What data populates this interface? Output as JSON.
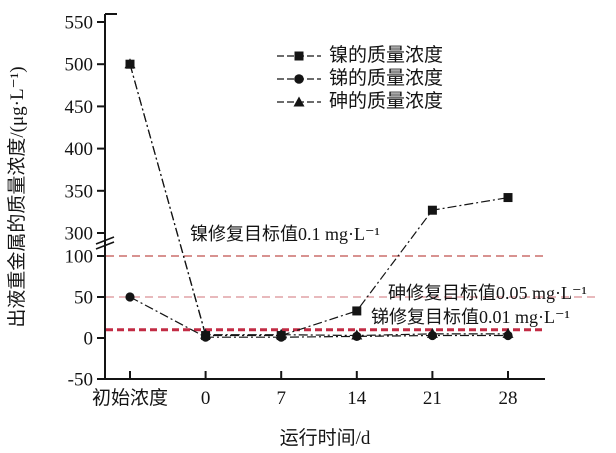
{
  "chart_data": {
    "type": "line",
    "title": "",
    "x_axis_label": "运行时间/d",
    "y_axis_label": "出液重金属的质量浓度/(μg·L⁻¹)",
    "categories": [
      "初始浓度",
      "0",
      "7",
      "14",
      "21",
      "28"
    ],
    "y_ticks": [
      -50,
      0,
      50,
      100,
      300,
      350,
      400,
      450,
      500,
      550
    ],
    "y_axis_break": {
      "after_value": 100,
      "before_value": 300
    },
    "grid": false,
    "legend_position": "top-center",
    "series": [
      {
        "name": "镍的质量浓度",
        "marker": "square",
        "color": "#141414",
        "values": [
          500,
          3,
          3,
          33,
          327,
          342
        ]
      },
      {
        "name": "锑的质量浓度",
        "marker": "circle",
        "color": "#141414",
        "values": [
          50,
          1,
          1,
          2,
          3,
          3
        ]
      },
      {
        "name": "砷的质量浓度",
        "marker": "triangle",
        "color": "#141414",
        "values": [
          500,
          4,
          4,
          3,
          5,
          5
        ]
      }
    ],
    "target_lines": [
      {
        "label": "镍修复目标值0.1 mg·L⁻¹",
        "value": 100,
        "style": "thin",
        "color": "#c0504d"
      },
      {
        "label": "砷修复目标值0.05 mg·L⁻¹",
        "value": 50,
        "style": "thin-light",
        "color": "#d98f93"
      },
      {
        "label": "锑修复目标值0.01 mg·L⁻¹",
        "value": 10,
        "style": "bold",
        "color": "#c22b44"
      }
    ],
    "colors": {
      "axis": "#141414",
      "series": "#141414"
    }
  }
}
